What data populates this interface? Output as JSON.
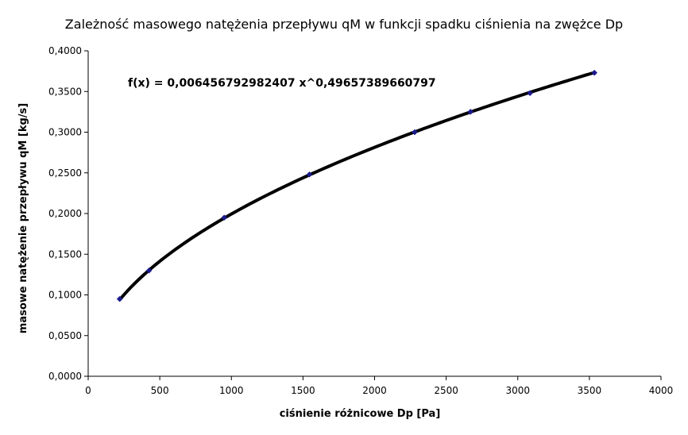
{
  "chart_data": {
    "type": "scatter",
    "title": "Zależność masowego natężenia przepływu qM w funkcji spadku ciśnienia na zwężce Dp",
    "xlabel": "ciśnienie różnicowe Dp [Pa]",
    "ylabel": "masowe natężenie przepływu qM [kg/s]",
    "xlim": [
      0,
      4000
    ],
    "ylim": [
      0,
      0.4
    ],
    "x_ticks": [
      "0",
      "500",
      "1000",
      "1500",
      "2000",
      "2500",
      "3000",
      "3500",
      "4000"
    ],
    "y_ticks": [
      "0,0000",
      "0,0500",
      "0,1000",
      "0,1500",
      "0,2000",
      "0,2500",
      "0,3000",
      "0,3500",
      "0,4000"
    ],
    "trendline_equation": "f(x) = 0,006456792982407 x^0,49657389660797",
    "trendline": {
      "type": "power",
      "a": 0.006456792982407,
      "b": 0.49657389660797,
      "color": "#000000"
    },
    "grid": false,
    "legend": "none",
    "series": [
      {
        "color": "#1a1a8c",
        "points": [
          {
            "x": 220,
            "y": 0.095
          },
          {
            "x": 425,
            "y": 0.13
          },
          {
            "x": 950,
            "y": 0.195
          },
          {
            "x": 1545,
            "y": 0.248
          },
          {
            "x": 2280,
            "y": 0.3
          },
          {
            "x": 2670,
            "y": 0.325
          },
          {
            "x": 3085,
            "y": 0.348
          },
          {
            "x": 3535,
            "y": 0.373
          }
        ]
      }
    ]
  }
}
